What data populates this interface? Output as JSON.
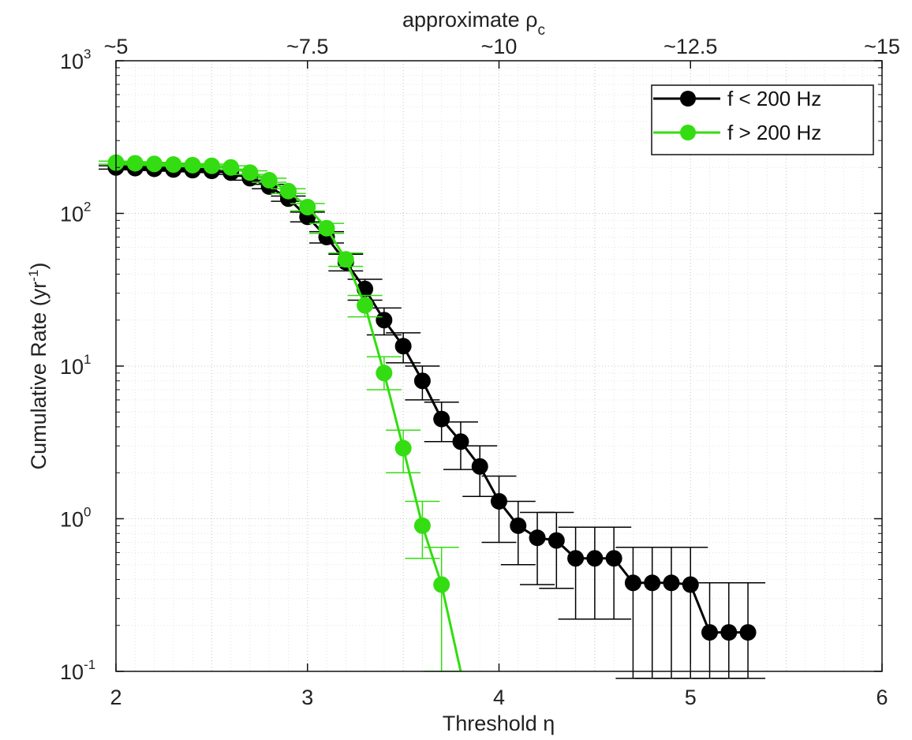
{
  "chart_data": {
    "type": "line",
    "xlabel": "Threshold η",
    "ylabel_main": "Cumulative Rate (yr",
    "ylabel_sup": "-1",
    "ylabel_close": ")",
    "top_label_main": "approximate ρ",
    "top_label_sub": "c",
    "xlim": [
      2,
      6
    ],
    "ylim": [
      0.1,
      1000
    ],
    "yscale": "log",
    "grid": true,
    "legend_position": "top-right",
    "x_ticks": [
      "2",
      "3",
      "4",
      "5",
      "6"
    ],
    "y_ticks": [
      {
        "base": "10",
        "exp": "-1",
        "value": 0.1
      },
      {
        "base": "10",
        "exp": "0",
        "value": 1
      },
      {
        "base": "10",
        "exp": "1",
        "value": 10
      },
      {
        "base": "10",
        "exp": "2",
        "value": 100
      },
      {
        "base": "10",
        "exp": "3",
        "value": 1000
      }
    ],
    "top_ticks": [
      {
        "label": "~5",
        "x": 2.0
      },
      {
        "label": "~7.5",
        "x": 3.0
      },
      {
        "label": "~10",
        "x": 4.0
      },
      {
        "label": "~12.5",
        "x": 5.0
      },
      {
        "label": "~15",
        "x": 6.0
      }
    ],
    "series": [
      {
        "name": "f < 200 Hz",
        "color": "#000000",
        "x": [
          2.0,
          2.1,
          2.2,
          2.3,
          2.4,
          2.5,
          2.6,
          2.7,
          2.8,
          2.9,
          3.0,
          3.1,
          3.2,
          3.3,
          3.4,
          3.5,
          3.6,
          3.7,
          3.8,
          3.9,
          4.0,
          4.1,
          4.2,
          4.3,
          4.4,
          4.5,
          4.6,
          4.7,
          4.8,
          4.9,
          5.0,
          5.1,
          5.2,
          5.3
        ],
        "y": [
          200,
          198,
          196,
          194,
          192,
          190,
          185,
          170,
          150,
          125,
          95,
          70,
          48,
          32,
          20,
          13.5,
          8,
          4.5,
          3.2,
          2.2,
          1.3,
          0.9,
          0.75,
          0.72,
          0.55,
          0.55,
          0.55,
          0.38,
          0.38,
          0.38,
          0.37,
          0.18,
          0.18,
          0.18
        ],
        "yerr_low": [
          195,
          193,
          191,
          189,
          187,
          185,
          180,
          165,
          145,
          120,
          88,
          64,
          42,
          27,
          16,
          10.5,
          6,
          3.2,
          2.1,
          1.4,
          0.7,
          0.5,
          0.37,
          0.35,
          0.22,
          0.22,
          0.22,
          0.09,
          0.09,
          0.09,
          0.09,
          0.09,
          0.09,
          0.09
        ],
        "yerr_high": [
          205,
          203,
          201,
          199,
          197,
          195,
          190,
          175,
          155,
          130,
          102,
          76,
          54,
          37,
          24,
          16.5,
          10,
          5.8,
          4.3,
          3.0,
          1.9,
          1.3,
          1.1,
          1.1,
          0.88,
          0.88,
          0.88,
          0.65,
          0.65,
          0.65,
          0.65,
          0.38,
          0.38,
          0.38
        ]
      },
      {
        "name": "f > 200 Hz",
        "color": "#33dd11",
        "x": [
          2.0,
          2.1,
          2.2,
          2.3,
          2.4,
          2.5,
          2.6,
          2.7,
          2.8,
          2.9,
          3.0,
          3.1,
          3.2,
          3.3,
          3.4,
          3.5,
          3.6,
          3.7,
          3.8
        ],
        "y": [
          215,
          213,
          211,
          209,
          207,
          205,
          200,
          185,
          165,
          140,
          110,
          80,
          50,
          25,
          9,
          2.9,
          0.9,
          0.37,
          0.1
        ],
        "yerr_low": [
          210,
          208,
          206,
          204,
          202,
          200,
          195,
          180,
          160,
          135,
          104,
          74,
          45,
          21,
          7,
          2.0,
          0.55,
          0.1,
          0.1
        ],
        "yerr_high": [
          220,
          218,
          216,
          214,
          212,
          210,
          205,
          190,
          170,
          145,
          116,
          86,
          55,
          29,
          11.5,
          3.8,
          1.3,
          0.65,
          0.1
        ]
      }
    ]
  }
}
